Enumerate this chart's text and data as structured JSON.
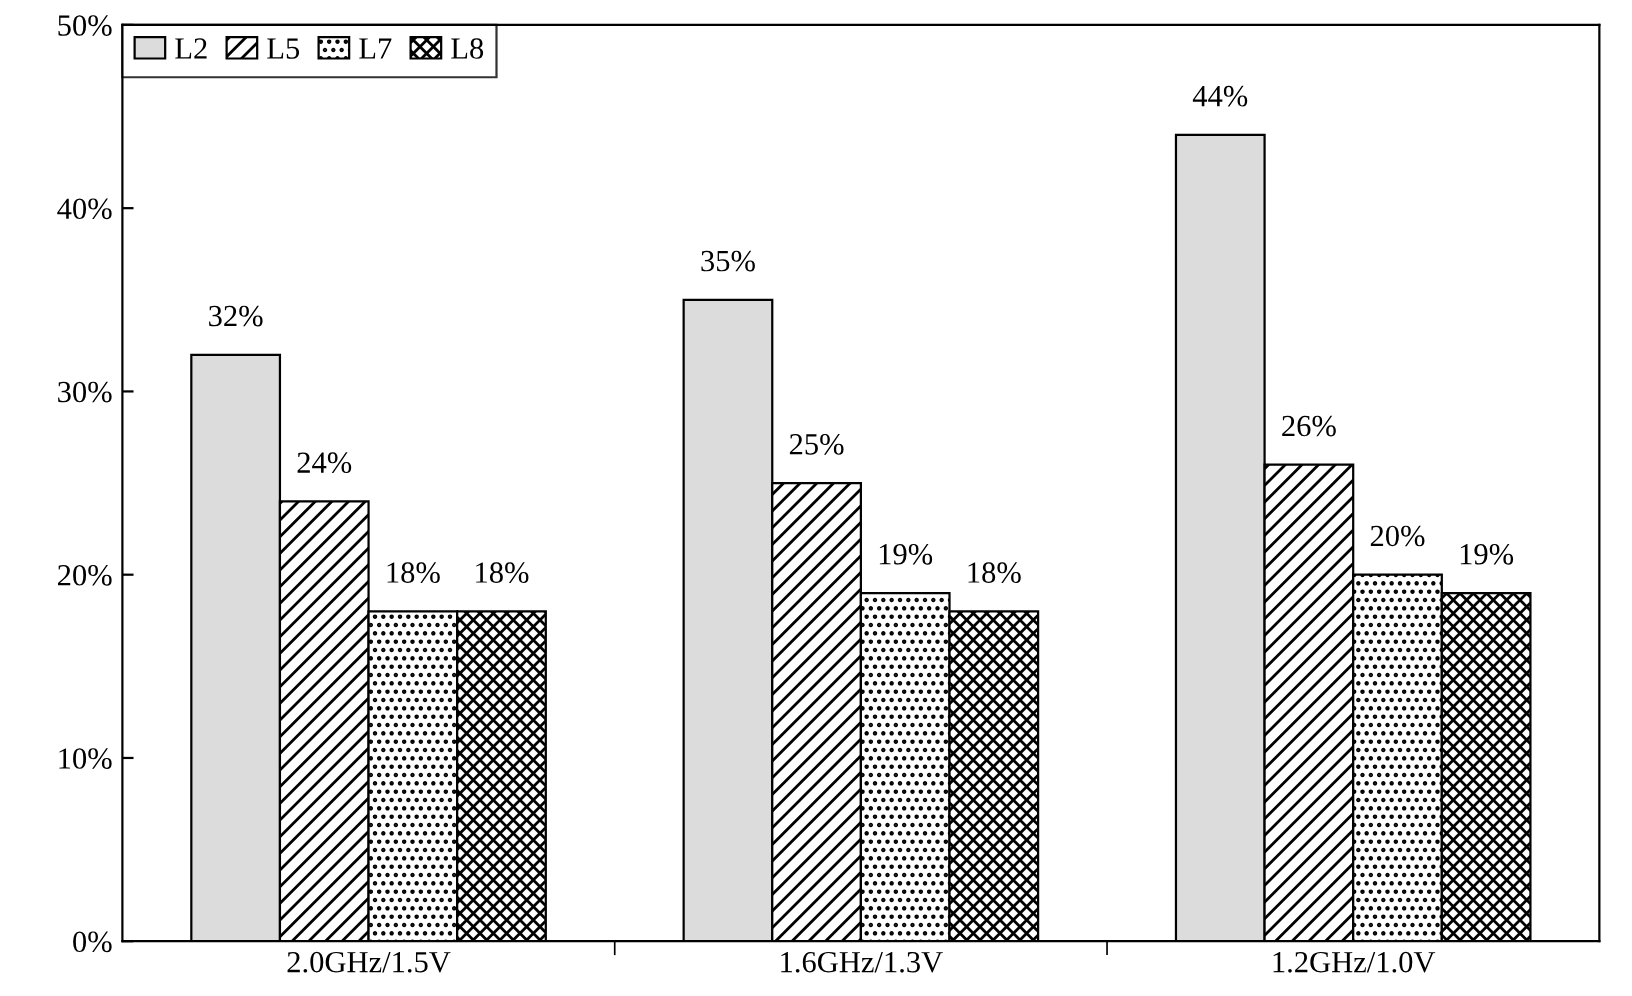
{
  "chart_data": {
    "type": "bar",
    "categories": [
      "2.0GHz/1.5V",
      "1.6GHz/1.3V",
      "1.2GHz/1.0V"
    ],
    "series": [
      {
        "name": "L2",
        "color": "#dcdcdc",
        "values": [
          32,
          35,
          44
        ],
        "value_labels": [
          "32%",
          "35%",
          "44%"
        ]
      },
      {
        "name": "L5",
        "color": "#000000",
        "values": [
          24,
          25,
          26
        ],
        "value_labels": [
          "24%",
          "25%",
          "26%"
        ]
      },
      {
        "name": "L7",
        "color": "#000000",
        "values": [
          18,
          19,
          20
        ],
        "value_labels": [
          "18%",
          "19%",
          "20%"
        ]
      },
      {
        "name": "L8",
        "color": "#000000",
        "values": [
          18,
          18,
          19
        ],
        "value_labels": [
          "18%",
          "18%",
          "19%"
        ]
      }
    ],
    "ylim": [
      0,
      50
    ],
    "yticks": [
      {
        "value": 0,
        "label": "0%"
      },
      {
        "value": 10,
        "label": "10%"
      },
      {
        "value": 20,
        "label": "20%"
      },
      {
        "value": 30,
        "label": "30%"
      },
      {
        "value": 40,
        "label": "40%"
      },
      {
        "value": 50,
        "label": "50%"
      }
    ],
    "legend": "top left",
    "grid": false
  }
}
